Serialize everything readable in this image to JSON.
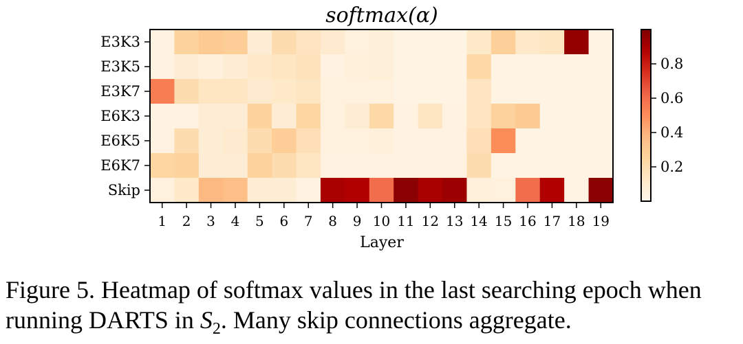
{
  "chart_data": {
    "type": "heatmap",
    "title": "softmax(α)",
    "xlabel": "Layer",
    "ylabel": "",
    "x_categories": [
      "1",
      "2",
      "3",
      "4",
      "5",
      "6",
      "7",
      "8",
      "9",
      "10",
      "11",
      "12",
      "13",
      "14",
      "15",
      "16",
      "17",
      "18",
      "19"
    ],
    "y_categories": [
      "E3K3",
      "E3K5",
      "E3K7",
      "E6K3",
      "E6K5",
      "E6K7",
      "Skip"
    ],
    "values": [
      [
        0.04,
        0.25,
        0.3,
        0.28,
        0.08,
        0.2,
        0.15,
        0.1,
        0.05,
        0.07,
        0.03,
        0.03,
        0.03,
        0.12,
        0.27,
        0.12,
        0.14,
        0.95,
        0.03
      ],
      [
        0.04,
        0.08,
        0.06,
        0.08,
        0.12,
        0.14,
        0.16,
        0.04,
        0.06,
        0.07,
        0.03,
        0.03,
        0.03,
        0.22,
        0.03,
        0.03,
        0.03,
        0.03,
        0.03
      ],
      [
        0.55,
        0.2,
        0.14,
        0.14,
        0.1,
        0.12,
        0.14,
        0.05,
        0.05,
        0.05,
        0.03,
        0.03,
        0.03,
        0.15,
        0.03,
        0.03,
        0.03,
        0.03,
        0.03
      ],
      [
        0.04,
        0.04,
        0.08,
        0.08,
        0.25,
        0.08,
        0.24,
        0.05,
        0.08,
        0.22,
        0.04,
        0.14,
        0.04,
        0.15,
        0.26,
        0.3,
        0.03,
        0.03,
        0.03
      ],
      [
        0.04,
        0.2,
        0.08,
        0.1,
        0.2,
        0.28,
        0.18,
        0.05,
        0.05,
        0.06,
        0.04,
        0.04,
        0.04,
        0.18,
        0.5,
        0.03,
        0.03,
        0.03,
        0.03
      ],
      [
        0.24,
        0.25,
        0.08,
        0.08,
        0.26,
        0.2,
        0.14,
        0.04,
        0.04,
        0.04,
        0.04,
        0.04,
        0.04,
        0.2,
        0.03,
        0.03,
        0.03,
        0.03,
        0.03
      ],
      [
        0.05,
        0.12,
        0.38,
        0.36,
        0.08,
        0.08,
        0.04,
        0.9,
        0.88,
        0.6,
        0.97,
        0.9,
        0.93,
        0.06,
        0.05,
        0.6,
        0.88,
        0.03,
        0.97
      ]
    ],
    "colorbar_ticks": [
      0.2,
      0.4,
      0.6,
      0.8
    ],
    "colorbar_range": [
      0.0,
      1.0
    ],
    "colormap": "OrRd"
  },
  "caption": {
    "prefix": "Figure 5. Heatmap of softmax values in the last searching epoch when running DARTS in ",
    "math_var": "S",
    "math_sub": "2",
    "suffix": ". Many skip connections aggregate."
  }
}
